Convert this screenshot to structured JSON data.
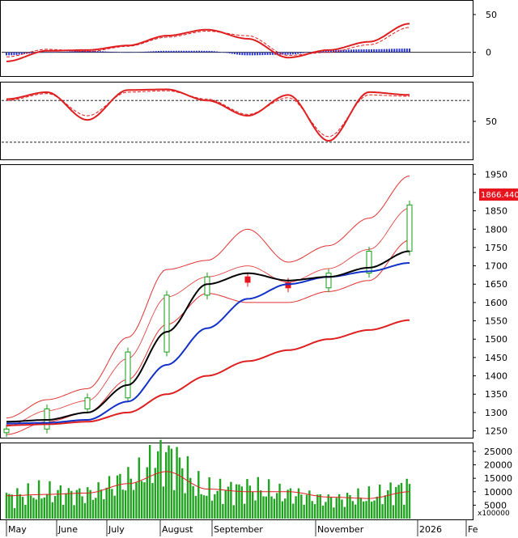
{
  "colors": {
    "up": "#169c16",
    "down": "#e8141e",
    "ma_fast": "#000000",
    "ma_mid": "#1131c9",
    "ma_slow": "#df1f1f",
    "bands": "#e23232",
    "macd": "#df1f1f",
    "hist": "#2b37d6",
    "volume": "#1fa31f",
    "last_bg": "#e8141e"
  },
  "chart_data": [
    {
      "type": "line",
      "panel": "macd",
      "x": [
        "2025-05-01",
        "2025-05-26",
        "2025-06-20",
        "2025-07-15",
        "2025-08-08",
        "2025-09-02",
        "2025-09-27",
        "2025-10-22",
        "2025-11-16",
        "2025-12-11",
        "2026-01-05"
      ],
      "series": [
        {
          "values": [
            -12,
            2,
            3,
            9,
            22,
            30,
            18,
            -7,
            3,
            14,
            38
          ],
          "style": "solid"
        },
        {
          "values": [
            -6,
            4,
            1,
            8,
            20,
            28,
            22,
            -4,
            0,
            10,
            33
          ],
          "style": "dashed"
        }
      ],
      "histogram": [
        -4,
        0,
        2,
        0,
        2,
        2,
        -4,
        -3,
        3,
        4,
        5
      ],
      "yticks": [
        "50",
        "0"
      ],
      "ylim": [
        -25,
        65
      ]
    },
    {
      "type": "line",
      "panel": "stochastic",
      "x": [
        "2025-05-01",
        "2025-05-26",
        "2025-06-20",
        "2025-07-15",
        "2025-08-08",
        "2025-09-02",
        "2025-09-27",
        "2025-10-22",
        "2025-11-16",
        "2025-12-11",
        "2026-01-05"
      ],
      "series": [
        {
          "values": [
            82,
            92,
            52,
            95,
            96,
            80,
            58,
            88,
            22,
            92,
            88
          ],
          "style": "solid"
        },
        {
          "values": [
            80,
            90,
            58,
            92,
            94,
            82,
            60,
            84,
            28,
            88,
            86
          ],
          "style": "dashed"
        }
      ],
      "reference_lines": [
        80,
        20
      ],
      "yticks": [
        "50"
      ],
      "ylim": [
        0,
        100
      ]
    },
    {
      "type": "candlestick",
      "panel": "price",
      "x": [
        "2025-05-01",
        "2025-05-26",
        "2025-06-20",
        "2025-07-15",
        "2025-08-08",
        "2025-09-02",
        "2025-09-27",
        "2025-10-22",
        "2025-11-16",
        "2025-12-11",
        "2026-01-05"
      ],
      "close": [
        1255,
        1310,
        1340,
        1465,
        1620,
        1670,
        1655,
        1640,
        1680,
        1740,
        1866
      ],
      "ma_fast": [
        1275,
        1280,
        1300,
        1375,
        1520,
        1650,
        1680,
        1660,
        1670,
        1695,
        1740
      ],
      "ma_mid": [
        1270,
        1272,
        1280,
        1330,
        1430,
        1530,
        1610,
        1650,
        1670,
        1685,
        1708
      ],
      "ma_slow": [
        1265,
        1268,
        1275,
        1300,
        1350,
        1400,
        1440,
        1470,
        1500,
        1525,
        1552
      ],
      "band_upper": [
        1285,
        1335,
        1365,
        1505,
        1690,
        1715,
        1800,
        1710,
        1755,
        1830,
        1945
      ],
      "band_lower": [
        1240,
        1275,
        1300,
        1390,
        1540,
        1625,
        1600,
        1600,
        1630,
        1660,
        1770
      ],
      "last_value": "1866.440",
      "yticks": [
        "1950",
        "1900",
        "1850",
        "1800",
        "1750",
        "1700",
        "1650",
        "1600",
        "1550",
        "1500",
        "1450",
        "1400",
        "1350",
        "1300",
        "1250"
      ],
      "ylim": [
        1238,
        1955
      ]
    },
    {
      "type": "bar",
      "panel": "volume",
      "x": [
        "2025-05-01",
        "2025-05-26",
        "2025-06-20",
        "2025-07-15",
        "2025-08-08",
        "2025-09-02",
        "2025-09-27",
        "2025-10-22",
        "2025-11-16",
        "2025-12-11",
        "2026-01-05"
      ],
      "values": [
        8000,
        9500,
        9000,
        14000,
        23000,
        10000,
        11000,
        9000,
        7000,
        8000,
        11500
      ],
      "average": [
        8500,
        9000,
        9500,
        13000,
        17500,
        11000,
        10000,
        10000,
        8000,
        7500,
        10000
      ],
      "yticks": [
        "25000",
        "20000",
        "15000",
        "10000",
        "5000"
      ],
      "unit_label": "x100000",
      "ylim": [
        0,
        28000
      ]
    }
  ],
  "x_axis": {
    "labels": [
      "May",
      "June",
      "July",
      "August",
      "September",
      "November",
      "2026",
      "Fe"
    ]
  }
}
